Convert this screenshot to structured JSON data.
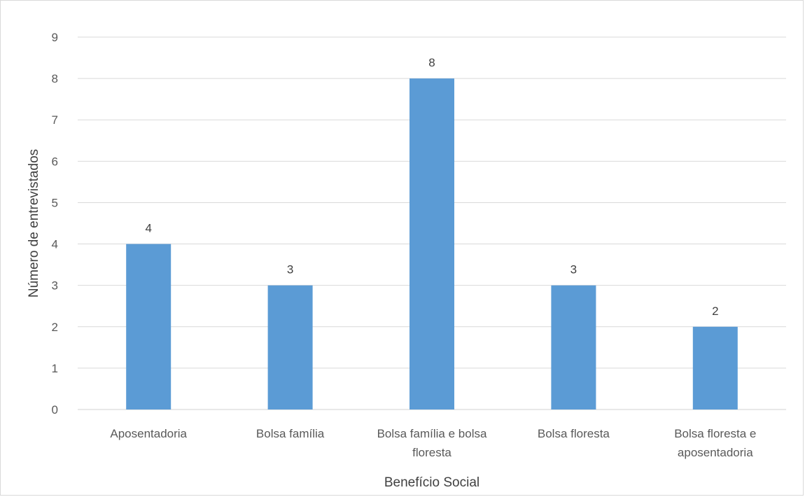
{
  "chart_data": {
    "type": "bar",
    "title": "",
    "xlabel": "Benefício Social",
    "ylabel": "Número de entrevistados",
    "categories": [
      [
        "Aposentadoria"
      ],
      [
        "Bolsa família"
      ],
      [
        "Bolsa família e bolsa",
        "floresta"
      ],
      [
        "Bolsa floresta"
      ],
      [
        "Bolsa floresta e",
        "aposentadoria"
      ]
    ],
    "values": [
      4,
      3,
      8,
      3,
      2
    ],
    "ylim": [
      0,
      9
    ],
    "yticks": [
      0,
      1,
      2,
      3,
      4,
      5,
      6,
      7,
      8,
      9
    ],
    "grid": true,
    "legend": "none",
    "bar_color": "#5b9bd5",
    "data_labels": true
  }
}
